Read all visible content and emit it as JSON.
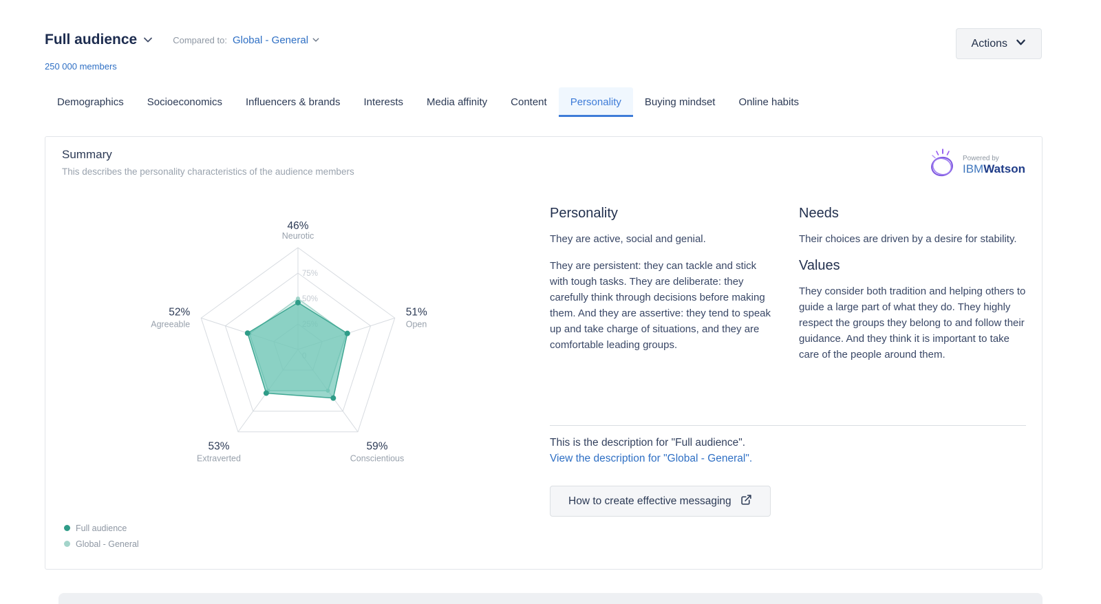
{
  "page": {
    "audience_selector": "Full audience",
    "compared_to_label": "Compared to:",
    "compared_to_value": "Global - General",
    "members_link": "250 000 members",
    "actions_button": "Actions"
  },
  "tabs": [
    {
      "label": "Demographics",
      "active": false
    },
    {
      "label": "Socioeconomics",
      "active": false
    },
    {
      "label": "Influencers & brands",
      "active": false
    },
    {
      "label": "Interests",
      "active": false
    },
    {
      "label": "Media affinity",
      "active": false
    },
    {
      "label": "Content",
      "active": false
    },
    {
      "label": "Personality",
      "active": true
    },
    {
      "label": "Buying mindset",
      "active": false
    },
    {
      "label": "Online habits",
      "active": false
    }
  ],
  "summary": {
    "title": "Summary",
    "subtitle": "This describes the personality characteristics of the audience members",
    "watson": {
      "powered_by": "Powered by",
      "brand_regular": "IBM",
      "brand_bold": "Watson"
    }
  },
  "chart_data": {
    "type": "radar",
    "title": "Personality characteristics radar",
    "categories": [
      "Neurotic",
      "Open",
      "Conscientious",
      "Extraverted",
      "Agreeable"
    ],
    "series": [
      {
        "name": "Full audience",
        "values": [
          46,
          51,
          59,
          53,
          52
        ],
        "color": "#56bcaa",
        "fill_opacity": 0.6,
        "stroke": "#3fa793",
        "dot": "#2f9c88",
        "dot_r": 4
      },
      {
        "name": "Global - General",
        "values": [
          50,
          50,
          50,
          50,
          50
        ],
        "color": "#bce3db",
        "fill_opacity": 0.55,
        "stroke": "#a3d4ca",
        "dot": "#a3d4ca",
        "dot_r": 3
      }
    ],
    "value_labels": [
      "46%",
      "51%",
      "59%",
      "53%",
      "52%"
    ],
    "grid_ticks": [
      0,
      25,
      50,
      75,
      100
    ],
    "grid_tick_labels": [
      "0",
      "25%",
      "50%",
      "75%"
    ],
    "max": 100,
    "legend_position": "bottom-left",
    "grid": true
  },
  "legend": [
    {
      "label": "Full audience",
      "color": "#2f9c88"
    },
    {
      "label": "Global - General",
      "color": "#a3d4ca"
    }
  ],
  "descriptions": {
    "personality_title": "Personality",
    "personality_p1": "They are active, social and genial.",
    "personality_p2": "They are persistent: they can tackle and stick with tough tasks. They are deliberate: they carefully think through decisions before making them. And they are assertive: they tend to speak up and take charge of situations, and they are comfortable leading groups.",
    "needs_title": "Needs",
    "needs_p": "Their choices are driven by a desire for stability.",
    "values_title": "Values",
    "values_p": "They consider both tradition and helping others to guide a large part of what they do. They highly respect the groups they belong to and follow their guidance. And they think it is important to take care of the people around them.",
    "current_description": "This is the description for \"Full audience\".",
    "switch_description_link": "View the description for \"Global - General\".",
    "messaging_button": "How to create effective messaging"
  }
}
